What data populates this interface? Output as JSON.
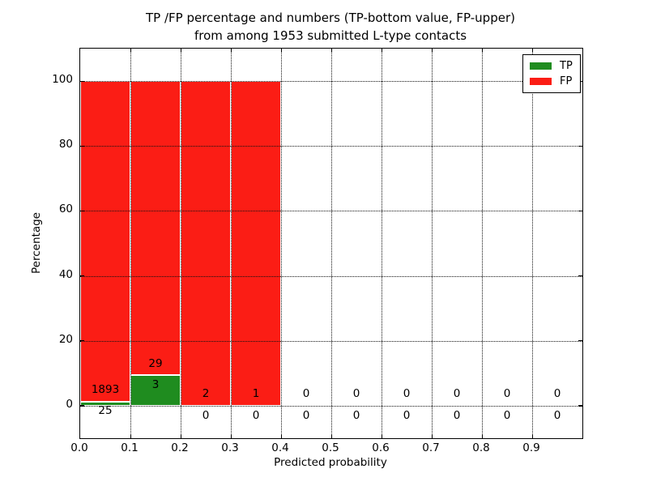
{
  "chart_data": {
    "type": "bar",
    "stacked": true,
    "title_lines": [
      "TP /FP percentage and numbers (TP-bottom value, FP-upper)",
      "from among 1953 submitted L-type contacts"
    ],
    "total_contacts": 1953,
    "xlabel": "Predicted probability",
    "ylabel": "Percentage",
    "xlim": [
      0.0,
      1.0
    ],
    "ylim": [
      -10,
      110
    ],
    "xticks": [
      "0.0",
      "0.1",
      "0.2",
      "0.3",
      "0.4",
      "0.5",
      "0.6",
      "0.7",
      "0.8",
      "0.9"
    ],
    "yticks": [
      0,
      20,
      40,
      60,
      80,
      100
    ],
    "grid": "dotted, drawn above bars",
    "legend_position": "upper right",
    "legend": [
      {
        "label": "TP",
        "color_key": "tp"
      },
      {
        "label": "FP",
        "color_key": "fp"
      }
    ],
    "colors": {
      "tp": "#1f8c1f",
      "fp": "#fb1d15",
      "bar_edge": "#ffffff",
      "frame": "#000000"
    },
    "bins": [
      {
        "range": [
          0.0,
          0.1
        ],
        "tp_count": 25,
        "fp_count": 1893,
        "tp_pct": 1.3,
        "fp_pct": 98.7
      },
      {
        "range": [
          0.1,
          0.2
        ],
        "tp_count": 3,
        "fp_count": 29,
        "tp_pct": 9.375,
        "fp_pct": 90.625
      },
      {
        "range": [
          0.2,
          0.3
        ],
        "tp_count": 0,
        "fp_count": 2,
        "tp_pct": 0,
        "fp_pct": 100
      },
      {
        "range": [
          0.3,
          0.4
        ],
        "tp_count": 0,
        "fp_count": 1,
        "tp_pct": 0,
        "fp_pct": 100
      },
      {
        "range": [
          0.4,
          0.5
        ],
        "tp_count": 0,
        "fp_count": 0,
        "tp_pct": 0,
        "fp_pct": 0
      },
      {
        "range": [
          0.5,
          0.6
        ],
        "tp_count": 0,
        "fp_count": 0,
        "tp_pct": 0,
        "fp_pct": 0
      },
      {
        "range": [
          0.6,
          0.7
        ],
        "tp_count": 0,
        "fp_count": 0,
        "tp_pct": 0,
        "fp_pct": 0
      },
      {
        "range": [
          0.7,
          0.8
        ],
        "tp_count": 0,
        "fp_count": 0,
        "tp_pct": 0,
        "fp_pct": 0
      },
      {
        "range": [
          0.8,
          0.9
        ],
        "tp_count": 0,
        "fp_count": 0,
        "tp_pct": 0,
        "fp_pct": 0
      },
      {
        "range": [
          0.9,
          1.0
        ],
        "tp_count": 0,
        "fp_count": 0,
        "tp_pct": 0,
        "fp_pct": 0
      }
    ]
  }
}
